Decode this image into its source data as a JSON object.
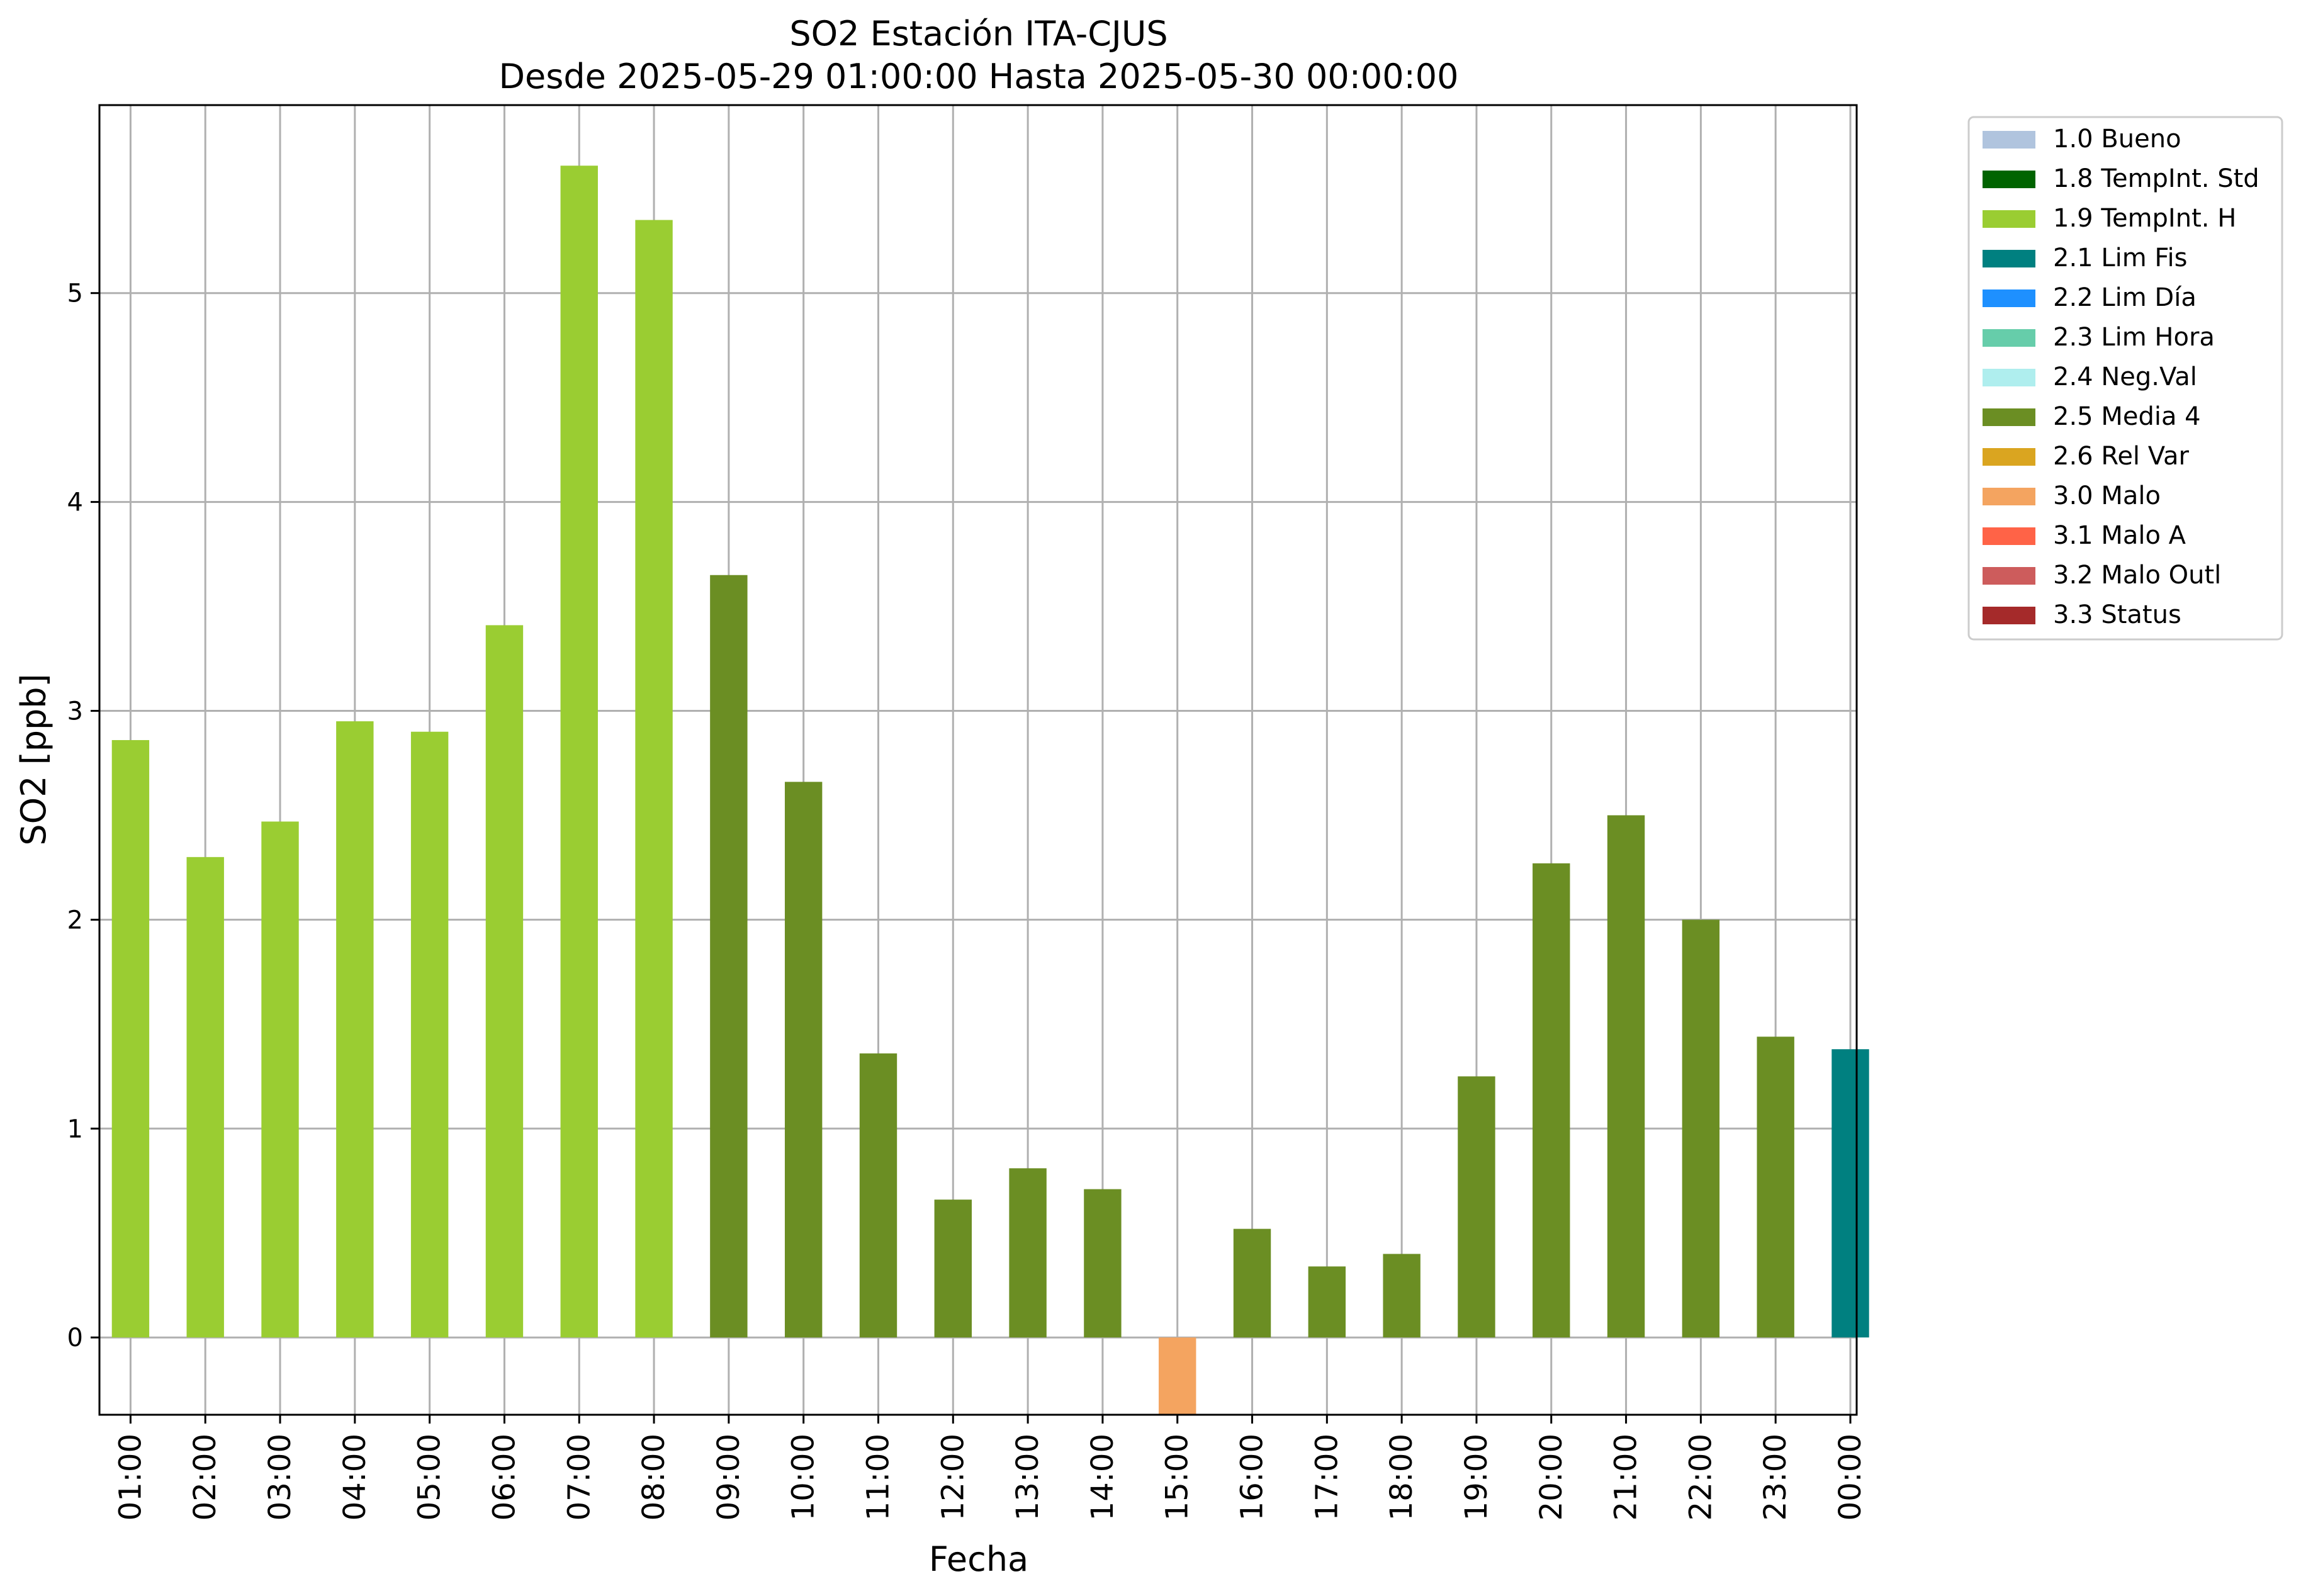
{
  "chart_data": {
    "type": "bar",
    "title": "SO2 Estación ITA-CJUS",
    "subtitle": "Desde 2025-05-29 01:00:00 Hasta 2025-05-30 00:00:00",
    "xlabel": "Fecha",
    "ylabel": "SO2 [ppb]",
    "ylim": [
      -0.37,
      5.9
    ],
    "yticks": [
      0,
      1,
      2,
      3,
      4,
      5
    ],
    "grid": true,
    "legend_position": "outside-right",
    "categories": [
      "01:00",
      "02:00",
      "03:00",
      "04:00",
      "05:00",
      "06:00",
      "07:00",
      "08:00",
      "09:00",
      "10:00",
      "11:00",
      "12:00",
      "13:00",
      "14:00",
      "15:00",
      "16:00",
      "17:00",
      "18:00",
      "19:00",
      "20:00",
      "21:00",
      "22:00",
      "23:00",
      "00:00"
    ],
    "values": [
      2.86,
      2.3,
      2.47,
      2.95,
      2.9,
      3.41,
      5.61,
      5.35,
      3.65,
      2.66,
      1.36,
      0.66,
      0.81,
      0.71,
      -0.37,
      0.52,
      0.34,
      0.4,
      1.25,
      2.27,
      2.5,
      2.0,
      1.44,
      1.38
    ],
    "flags": [
      "1.9 TempInt. H",
      "1.9 TempInt. H",
      "1.9 TempInt. H",
      "1.9 TempInt. H",
      "1.9 TempInt. H",
      "1.9 TempInt. H",
      "1.9 TempInt. H",
      "1.9 TempInt. H",
      "2.5 Media 4",
      "2.5 Media 4",
      "2.5 Media 4",
      "2.5 Media 4",
      "2.5 Media 4",
      "2.5 Media 4",
      "3.0 Malo",
      "2.5 Media 4",
      "2.5 Media 4",
      "2.5 Media 4",
      "2.5 Media 4",
      "2.5 Media 4",
      "2.5 Media 4",
      "2.5 Media 4",
      "2.5 Media 4",
      "2.1 Lim Fis"
    ],
    "legend": [
      {
        "label": "1.0 Bueno",
        "color": "#b0c4de"
      },
      {
        "label": "1.8 TempInt. Std",
        "color": "#006400"
      },
      {
        "label": "1.9 TempInt. H",
        "color": "#9acd32"
      },
      {
        "label": "2.1 Lim Fis",
        "color": "#008080"
      },
      {
        "label": "2.2 Lim Día",
        "color": "#1e90ff"
      },
      {
        "label": "2.3 Lim Hora",
        "color": "#66cdaa"
      },
      {
        "label": "2.4 Neg.Val",
        "color": "#afeeee"
      },
      {
        "label": "2.5 Media 4",
        "color": "#6b8e23"
      },
      {
        "label": "2.6 Rel Var",
        "color": "#daa520"
      },
      {
        "label": "3.0 Malo",
        "color": "#f4a460"
      },
      {
        "label": "3.1 Malo A",
        "color": "#ff6347"
      },
      {
        "label": "3.2 Malo Outl",
        "color": "#cd5c5c"
      },
      {
        "label": "3.3 Status",
        "color": "#a52a2a"
      }
    ]
  }
}
